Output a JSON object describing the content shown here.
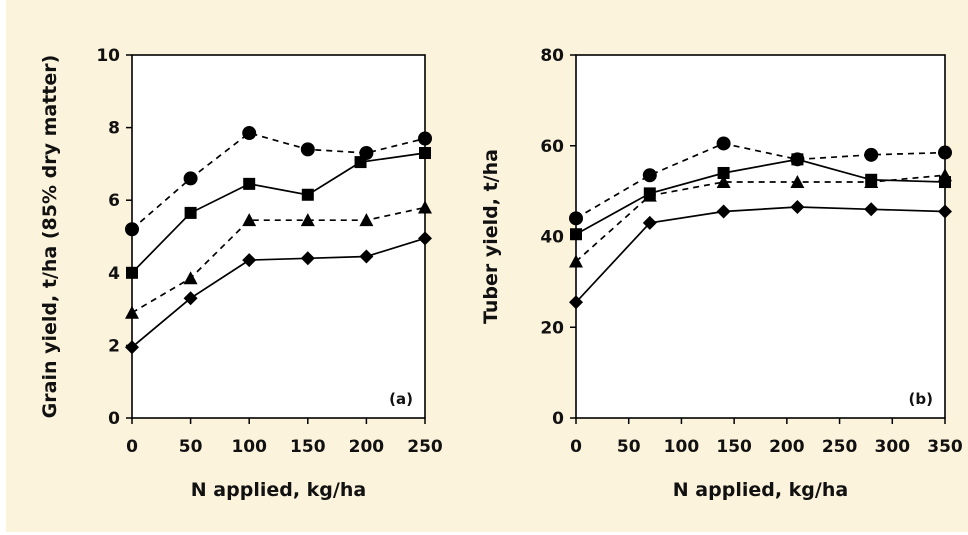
{
  "chart_data": [
    {
      "type": "line",
      "panel_label": "(a)",
      "xlabel": "N applied, kg/ha",
      "ylabel": "Grain yield, t/ha (85% dry matter)",
      "xlim": [
        0,
        250
      ],
      "ylim": [
        0,
        10
      ],
      "xticks": [
        0,
        50,
        100,
        150,
        200,
        250
      ],
      "yticks": [
        0,
        2,
        4,
        6,
        8,
        10
      ],
      "grid": false,
      "legend": "none",
      "series": [
        {
          "marker": "circle",
          "style": "dashed",
          "x": [
            0,
            50,
            100,
            150,
            200,
            250
          ],
          "y": [
            5.2,
            6.6,
            7.85,
            7.4,
            7.3,
            7.7
          ]
        },
        {
          "marker": "square",
          "style": "solid",
          "x": [
            0,
            50,
            100,
            150,
            195,
            250
          ],
          "y": [
            4.0,
            5.65,
            6.45,
            6.15,
            7.05,
            7.3
          ]
        },
        {
          "marker": "triangle",
          "style": "dashed",
          "x": [
            0,
            50,
            100,
            150,
            200,
            250
          ],
          "y": [
            2.9,
            3.85,
            5.45,
            5.45,
            5.45,
            5.8
          ]
        },
        {
          "marker": "diamond",
          "style": "solid",
          "x": [
            0,
            50,
            100,
            150,
            200,
            250
          ],
          "y": [
            1.95,
            3.3,
            4.35,
            4.4,
            4.45,
            4.95
          ]
        }
      ]
    },
    {
      "type": "line",
      "panel_label": "(b)",
      "xlabel": "N applied, kg/ha",
      "ylabel": "Tuber yield, t/ha",
      "xlim": [
        0,
        350
      ],
      "ylim": [
        0,
        80
      ],
      "xticks": [
        0,
        50,
        100,
        150,
        200,
        250,
        300,
        350
      ],
      "yticks": [
        0,
        20,
        40,
        60,
        80
      ],
      "grid": false,
      "legend": "none",
      "series": [
        {
          "marker": "circle",
          "style": "dashed",
          "x": [
            0,
            70,
            140,
            210,
            280,
            350
          ],
          "y": [
            44,
            53.5,
            60.5,
            57,
            58,
            58.5
          ]
        },
        {
          "marker": "square",
          "style": "solid",
          "x": [
            0,
            70,
            140,
            210,
            280,
            350
          ],
          "y": [
            40.5,
            49.5,
            54,
            57,
            52.5,
            52
          ]
        },
        {
          "marker": "triangle",
          "style": "dashed",
          "x": [
            0,
            70,
            140,
            210,
            280,
            350
          ],
          "y": [
            34.5,
            49,
            52,
            52,
            52,
            53.5
          ]
        },
        {
          "marker": "diamond",
          "style": "solid",
          "x": [
            0,
            70,
            140,
            210,
            280,
            350
          ],
          "y": [
            25.5,
            43,
            45.5,
            46.5,
            46,
            45.5
          ]
        }
      ]
    }
  ]
}
